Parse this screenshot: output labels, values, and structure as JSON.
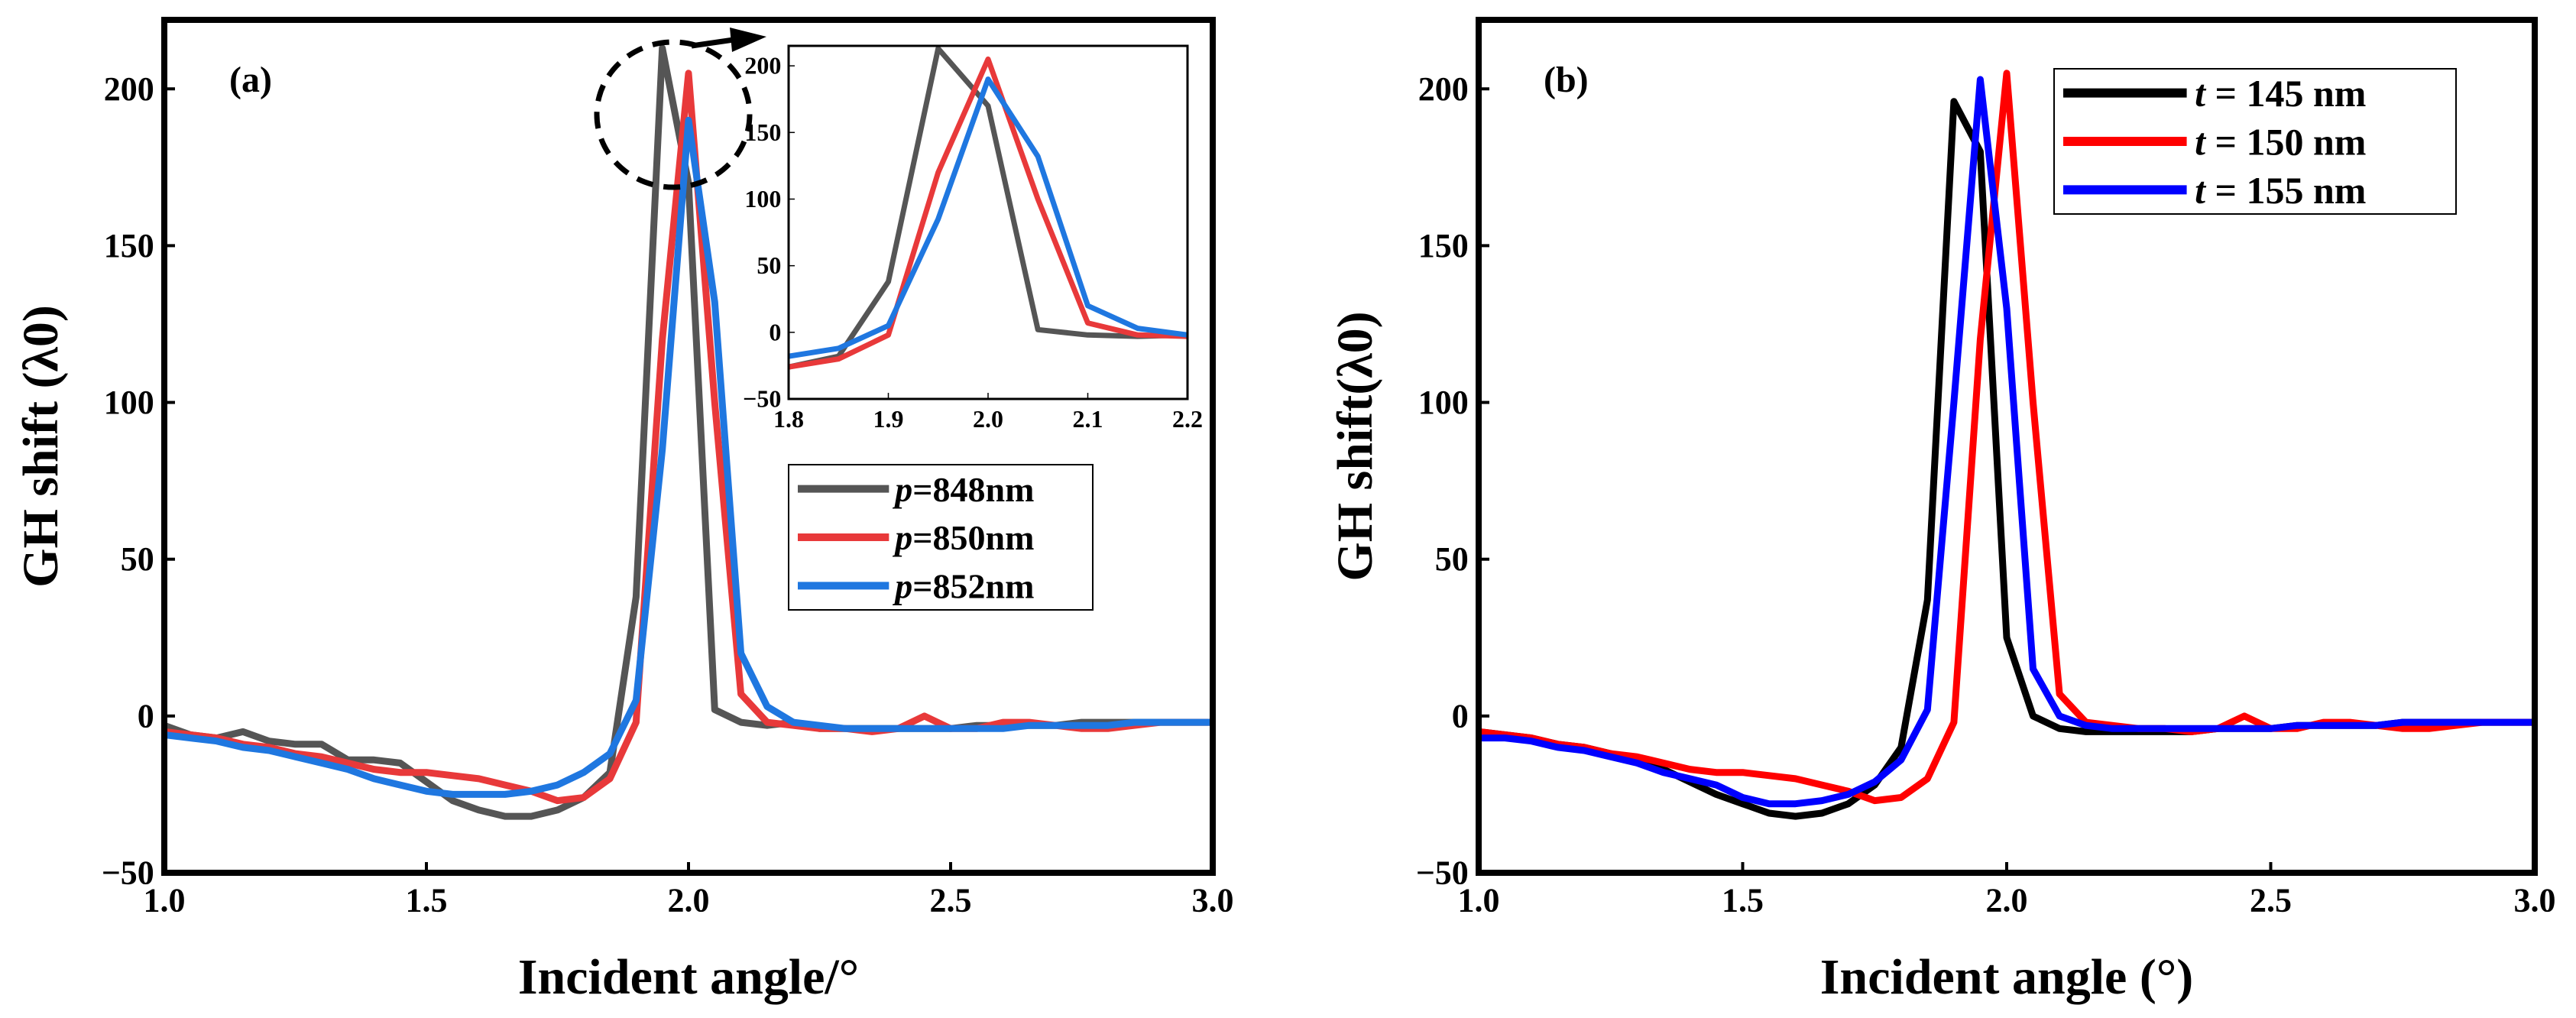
{
  "chart_data": [
    {
      "type": "line",
      "panel_label": "(a)",
      "xlabel": "Incident angle/°",
      "ylabel": "GH shift (λ0)",
      "xlim": [
        1.0,
        3.0
      ],
      "ylim": [
        -50,
        222
      ],
      "xticks": [
        "1.0",
        "1.5",
        "2.0",
        "2.5",
        "3.0"
      ],
      "yticks": [
        "−50",
        "0",
        "50",
        "100",
        "150",
        "200"
      ],
      "legend_position": "center-right",
      "x": [
        1.0,
        1.05,
        1.1,
        1.15,
        1.2,
        1.25,
        1.3,
        1.35,
        1.4,
        1.45,
        1.5,
        1.55,
        1.6,
        1.65,
        1.7,
        1.75,
        1.8,
        1.85,
        1.9,
        1.95,
        2.0,
        2.05,
        2.1,
        2.15,
        2.2,
        2.25,
        2.3,
        2.35,
        2.4,
        2.45,
        2.5,
        2.55,
        2.6,
        2.65,
        2.7,
        2.75,
        2.8,
        2.85,
        2.9,
        2.95,
        3.0
      ],
      "series": [
        {
          "name_prefix": "p",
          "name_suffix": "=848nm",
          "color": "#555555",
          "values": [
            -3,
            -6,
            -7,
            -5,
            -8,
            -9,
            -9,
            -14,
            -14,
            -15,
            -21,
            -27,
            -30,
            -32,
            -32,
            -30,
            -26,
            -18,
            38,
            213,
            170,
            2,
            -2,
            -3,
            -2,
            -4,
            -4,
            -4,
            -4,
            -4,
            -4,
            -3,
            -3,
            -3,
            -3,
            -2,
            -2,
            -2,
            -2,
            -2,
            -2
          ]
        },
        {
          "name_prefix": "p",
          "name_suffix": "=850nm",
          "color": "#e8393a",
          "values": [
            -5,
            -6,
            -7,
            -9,
            -10,
            -12,
            -13,
            -15,
            -17,
            -18,
            -18,
            -19,
            -20,
            -22,
            -24,
            -27,
            -26,
            -20,
            -2,
            120,
            205,
            100,
            7,
            -2,
            -3,
            -4,
            -4,
            -5,
            -4,
            0,
            -4,
            -4,
            -2,
            -2,
            -3,
            -4,
            -4,
            -3,
            -2,
            -2,
            -2
          ]
        },
        {
          "name_prefix": "p",
          "name_suffix": "=852nm",
          "color": "#1f77e0",
          "values": [
            -6,
            -7,
            -8,
            -10,
            -11,
            -13,
            -15,
            -17,
            -20,
            -22,
            -24,
            -25,
            -25,
            -25,
            -24,
            -22,
            -18,
            -12,
            5,
            85,
            190,
            132,
            20,
            3,
            -2,
            -3,
            -4,
            -4,
            -4,
            -4,
            -4,
            -4,
            -4,
            -3,
            -3,
            -3,
            -3,
            -2,
            -2,
            -2,
            -2
          ]
        }
      ],
      "inset": {
        "xlim": [
          1.8,
          2.2
        ],
        "ylim": [
          -50,
          215
        ],
        "xticks": [
          "1.8",
          "1.9",
          "2.0",
          "2.1",
          "2.2"
        ],
        "yticks": [
          "−50",
          "0",
          "50",
          "100",
          "150",
          "200"
        ]
      }
    },
    {
      "type": "line",
      "panel_label": "(b)",
      "xlabel": "Incident angle (°)",
      "ylabel": "GH shift(λ0)",
      "xlim": [
        1.0,
        3.0
      ],
      "ylim": [
        -50,
        222
      ],
      "xticks": [
        "1.0",
        "1.5",
        "2.0",
        "2.5",
        "3.0"
      ],
      "yticks": [
        "−50",
        "0",
        "50",
        "100",
        "150",
        "200"
      ],
      "legend_position": "top-right",
      "x": [
        1.0,
        1.05,
        1.1,
        1.15,
        1.2,
        1.25,
        1.3,
        1.35,
        1.4,
        1.45,
        1.5,
        1.55,
        1.6,
        1.65,
        1.7,
        1.75,
        1.8,
        1.85,
        1.9,
        1.95,
        2.0,
        2.05,
        2.1,
        2.15,
        2.2,
        2.25,
        2.3,
        2.35,
        2.4,
        2.45,
        2.5,
        2.55,
        2.6,
        2.65,
        2.7,
        2.75,
        2.8,
        2.85,
        2.9,
        2.95,
        3.0
      ],
      "series": [
        {
          "name_prefix": "t",
          "name_suffix": " = 145 nm",
          "color": "#000000",
          "values": [
            -5,
            -6,
            -7,
            -9,
            -10,
            -12,
            -14,
            -17,
            -21,
            -25,
            -28,
            -31,
            -32,
            -31,
            -28,
            -22,
            -10,
            37,
            196,
            180,
            25,
            0,
            -4,
            -5,
            -5,
            -5,
            -5,
            -5,
            -4,
            -4,
            -4,
            -3,
            -3,
            -3,
            -3,
            -2,
            -2,
            -2,
            -2,
            -2,
            -2
          ]
        },
        {
          "name_prefix": "t",
          "name_suffix": " = 150 nm",
          "color": "#ff0000",
          "values": [
            -5,
            -6,
            -7,
            -9,
            -10,
            -12,
            -13,
            -15,
            -17,
            -18,
            -18,
            -19,
            -20,
            -22,
            -24,
            -27,
            -26,
            -20,
            -2,
            120,
            205,
            100,
            7,
            -2,
            -3,
            -4,
            -4,
            -5,
            -4,
            0,
            -4,
            -4,
            -2,
            -2,
            -3,
            -4,
            -4,
            -3,
            -2,
            -2,
            -2
          ]
        },
        {
          "name_prefix": "t",
          "name_suffix": " = 155 nm",
          "color": "#0000ff",
          "values": [
            -7,
            -7,
            -8,
            -10,
            -11,
            -13,
            -15,
            -18,
            -20,
            -22,
            -26,
            -28,
            -28,
            -27,
            -25,
            -21,
            -14,
            2,
            100,
            203,
            130,
            15,
            0,
            -3,
            -4,
            -4,
            -4,
            -4,
            -4,
            -4,
            -4,
            -3,
            -3,
            -3,
            -3,
            -2,
            -2,
            -2,
            -2,
            -2,
            -2
          ]
        }
      ]
    }
  ]
}
